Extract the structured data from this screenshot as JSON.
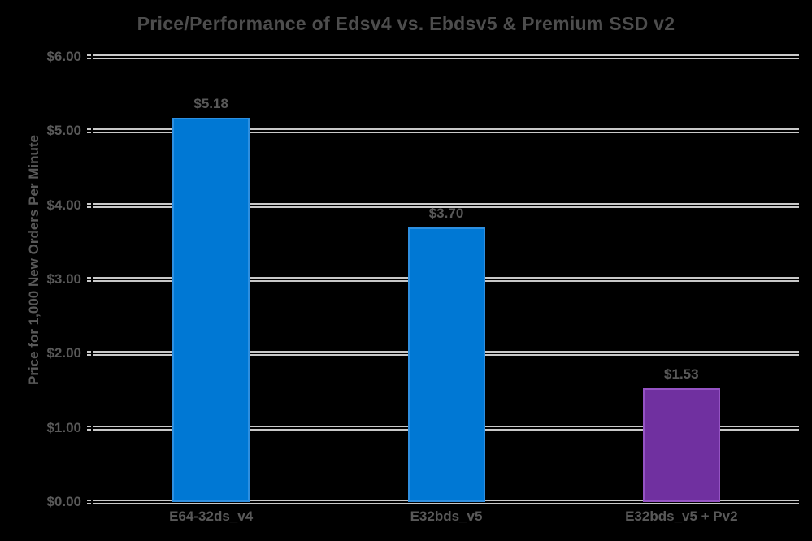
{
  "title": "Price/Performance of Edsv4 vs. Ebdsv5 & Premium SSD v2",
  "chart_data": {
    "type": "bar",
    "title": "Price/Performance of Edsv4 vs. Ebdsv5 & Premium SSD v2",
    "xlabel": "",
    "ylabel": "Price for 1,000 New Orders Per Minute",
    "categories": [
      "E64-32ds_v4",
      "E32bds_v5",
      "E32bds_v5 + Pv2"
    ],
    "values": [
      5.18,
      3.7,
      1.53
    ],
    "data_labels": [
      "$5.18",
      "$3.70",
      "$1.53"
    ],
    "ylim": [
      0,
      6
    ],
    "ytick_labels": [
      "$0.00",
      "$1.00",
      "$2.00",
      "$3.00",
      "$4.00",
      "$5.00",
      "$6.00"
    ],
    "grid": true,
    "gridline_style": "double",
    "legend": "none",
    "bar_colors": [
      "#0078D4",
      "#0078D4",
      "#7030A0"
    ],
    "bar_border_colors": [
      "#2E8FE0",
      "#2E8FE0",
      "#9553C4"
    ]
  },
  "colors": {
    "background": "#000000",
    "title_text": "#4d4d4d",
    "label_text": "#595959",
    "gridline": "#c9c9c9",
    "blue_bar": "#0078D4",
    "purple_bar": "#7030A0"
  }
}
